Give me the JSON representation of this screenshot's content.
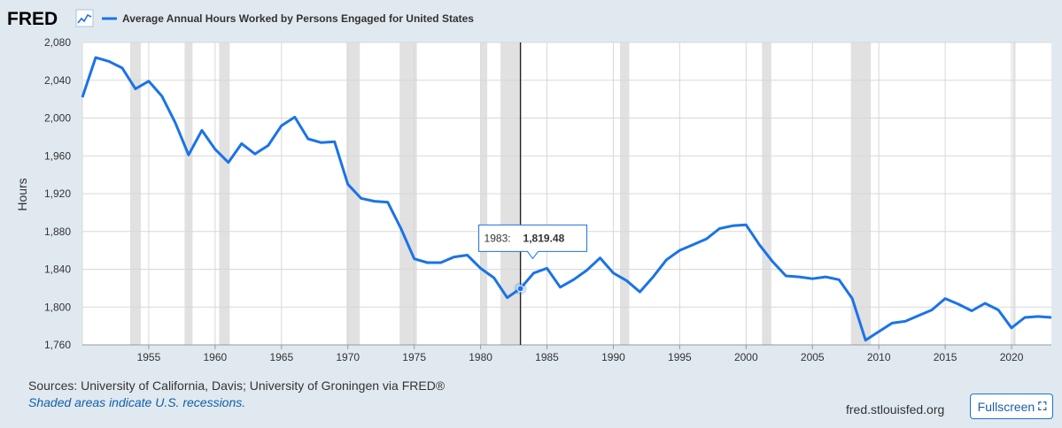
{
  "header": {
    "logo_text": "FRED",
    "series_title": "Average Annual Hours Worked by Persons Engaged for United States",
    "series_color": "#1a73e8"
  },
  "chart_data": {
    "type": "line",
    "title": "Average Annual Hours Worked by Persons Engaged for United States",
    "ylabel": "Hours",
    "xlabel": "",
    "xlim": [
      1950,
      2023
    ],
    "ylim": [
      1760,
      2080
    ],
    "x_ticks": [
      1955,
      1960,
      1965,
      1970,
      1975,
      1980,
      1985,
      1990,
      1995,
      2000,
      2005,
      2010,
      2015,
      2020
    ],
    "y_ticks": [
      1760,
      1800,
      1840,
      1880,
      1920,
      1960,
      2000,
      2040,
      2080
    ],
    "y_tick_labels": [
      "1,760",
      "1,800",
      "1,840",
      "1,880",
      "1,920",
      "1,960",
      "2,000",
      "2,040",
      "2,080"
    ],
    "grid": true,
    "series": [
      {
        "name": "Average Annual Hours Worked by Persons Engaged for United States",
        "x": [
          1950,
          1951,
          1952,
          1953,
          1954,
          1955,
          1956,
          1957,
          1958,
          1959,
          1960,
          1961,
          1962,
          1963,
          1964,
          1965,
          1966,
          1967,
          1968,
          1969,
          1970,
          1971,
          1972,
          1973,
          1974,
          1975,
          1976,
          1977,
          1978,
          1979,
          1980,
          1981,
          1982,
          1983,
          1984,
          1985,
          1986,
          1987,
          1988,
          1989,
          1990,
          1991,
          1992,
          1993,
          1994,
          1995,
          1996,
          1997,
          1998,
          1999,
          2000,
          2001,
          2002,
          2003,
          2004,
          2005,
          2006,
          2007,
          2008,
          2009,
          2010,
          2011,
          2012,
          2013,
          2014,
          2015,
          2016,
          2017,
          2018,
          2019,
          2020,
          2021,
          2022,
          2023
        ],
        "values": [
          2022,
          2064,
          2060,
          2053,
          2031,
          2039,
          2023,
          1995,
          1961,
          1987,
          1967,
          1953,
          1973,
          1962,
          1971,
          1992,
          2001,
          1978,
          1974,
          1975,
          1930,
          1915,
          1912,
          1911,
          1883,
          1851,
          1847,
          1847,
          1853,
          1855,
          1841,
          1831,
          1810,
          1819.48,
          1836,
          1841,
          1821,
          1829,
          1839,
          1852,
          1836,
          1828,
          1816,
          1832,
          1850,
          1860,
          1866,
          1872,
          1883,
          1886,
          1887,
          1866,
          1848,
          1833,
          1832,
          1830,
          1832,
          1829,
          1809,
          1765,
          1774,
          1783,
          1785,
          1791,
          1797,
          1809,
          1803,
          1796,
          1804,
          1797,
          1778,
          1789,
          1790,
          1789
        ]
      }
    ],
    "recessions": [
      [
        1953.6,
        1954.4
      ],
      [
        1957.7,
        1958.3
      ],
      [
        1960.3,
        1961.1
      ],
      [
        1969.9,
        1970.9
      ],
      [
        1973.9,
        1975.2
      ],
      [
        1980.0,
        1980.5
      ],
      [
        1981.5,
        1982.9
      ],
      [
        1990.5,
        1991.2
      ],
      [
        2001.2,
        2001.9
      ],
      [
        2007.9,
        2009.4
      ],
      [
        2020.1,
        2020.3
      ]
    ],
    "hover": {
      "year": 1983,
      "value": 1819.48,
      "label": "1983:",
      "value_label": "1,819.48"
    }
  },
  "footer": {
    "sources": "Sources: University of California, Davis; University of Groningen via FRED®",
    "note": "Shaded areas indicate U.S. recessions.",
    "site": "fred.stlouisfed.org",
    "fullscreen_label": "Fullscreen",
    "fullscreen_icon": "fullscreen-icon"
  }
}
